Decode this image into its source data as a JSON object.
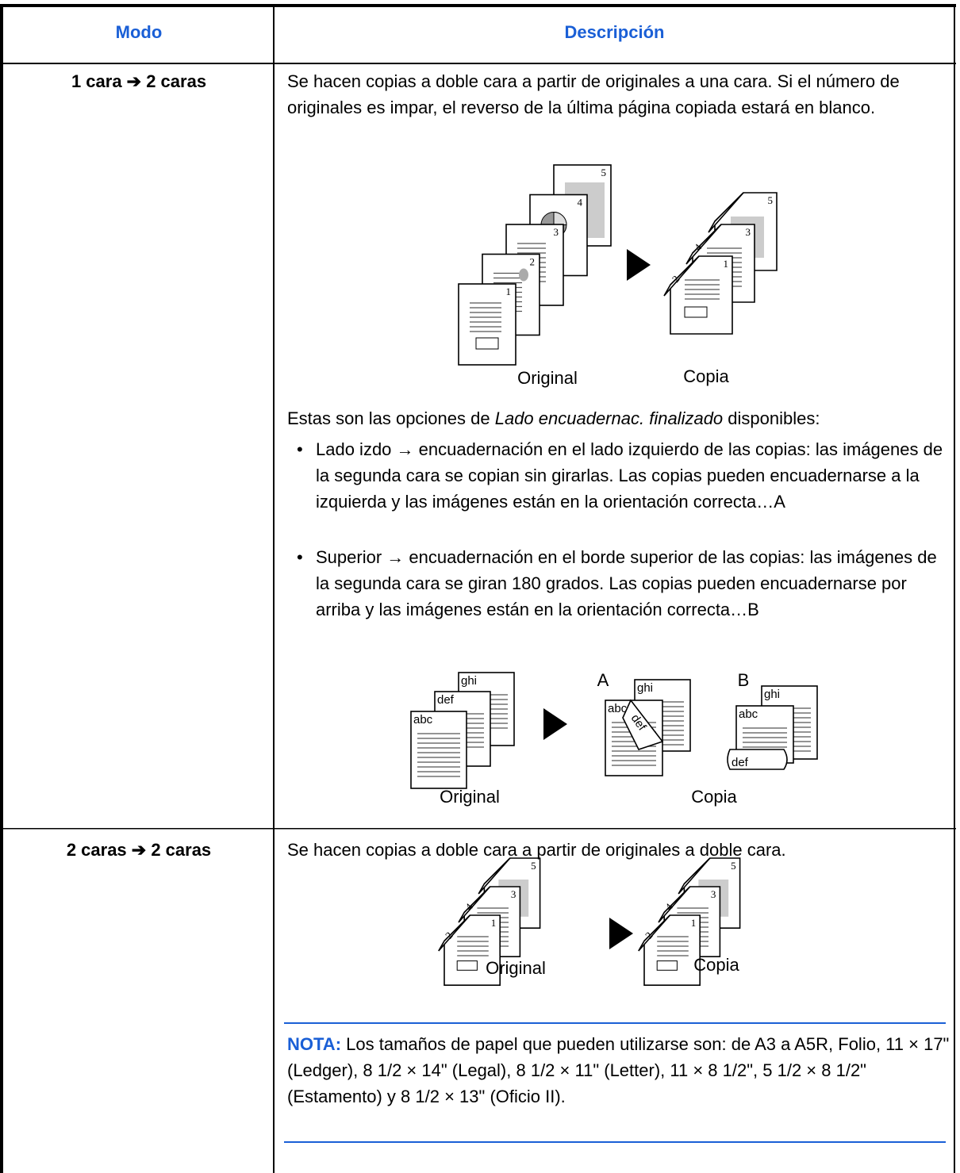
{
  "table": {
    "headers": [
      "Modo",
      "Descripción"
    ],
    "rows": [
      {
        "mode": "1 cara ➔ 2 caras",
        "description": "Se hacen copias a doble cara a partir de originales a una cara. Si el número de originales es impar, el reverso de la última página copiada estará en blanco.",
        "figure": {
          "original_pages": [
            "1",
            "2",
            "3",
            "4",
            "5"
          ],
          "copy_pages": [
            "1",
            "2",
            "3",
            "4",
            "5"
          ],
          "captions": [
            "Original",
            "Copia"
          ]
        },
        "options_intro": {
          "before": "Estas son las opciones de ",
          "emphasis": "Lado encuadernac. finalizado",
          "after": " disponibles:"
        },
        "options": [
          "Lado izdo → encuadernación en el lado izquierdo de las copias: las imágenes de la segunda cara se copian sin girarlas. Las copias pueden encuadernarse a la izquierda y las imágenes están en la orientación correcta…A",
          "Superior → encuadernación en el borde superior de las copias: las imágenes de la segunda cara se giran 180 grados. Las copias pueden encuadernarse por arriba y las imágenes están en la orientación correcta…B"
        ],
        "binding_figure": {
          "pages": [
            "abc",
            "def",
            "ghi"
          ],
          "variants": [
            "A",
            "B"
          ],
          "captions": [
            "Original",
            "Copia"
          ]
        }
      },
      {
        "mode": "2 caras ➔ 2 caras",
        "description": "Se hacen copias a doble cara a partir de originales a doble cara.",
        "figure": {
          "original_pages": [
            "1",
            "2",
            "3",
            "4",
            "5"
          ],
          "copy_pages": [
            "1",
            "2",
            "3",
            "4",
            "5"
          ],
          "captions": [
            "Original",
            "Copia"
          ]
        },
        "note": {
          "label": "NOTA:",
          "text": "Los tamaños de papel que pueden utilizarse son: de A3 a A5R, Folio, 11 × 17\" (Ledger), 8 1/2 × 14\" (Legal), 8 1/2 × 11\" (Letter), 11 × 8 1/2\", 5 1/2 × 8 1/2\" (Estamento) y 8 1/2 × 13\" (Oficio II)."
        }
      }
    ]
  }
}
